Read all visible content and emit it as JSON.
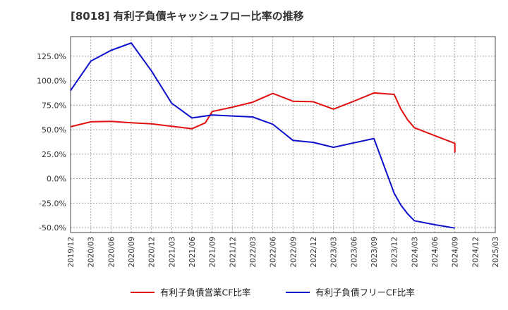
{
  "chart_data": {
    "type": "line",
    "title": "[8018]  有利子負債キャッシュフロー比率の推移",
    "xlabel": "",
    "ylabel": "",
    "ylim": [
      -55,
      145
    ],
    "yticks": [
      -50,
      -25,
      0,
      25,
      50,
      75,
      100,
      125
    ],
    "ytick_labels": [
      "-50.0%",
      "-25.0%",
      "0.0%",
      "25.0%",
      "50.0%",
      "75.0%",
      "100.0%",
      "125.0%"
    ],
    "xticks": [
      "2019/12",
      "2020/03",
      "2020/06",
      "2020/09",
      "2020/12",
      "2021/03",
      "2021/06",
      "2021/09",
      "2021/12",
      "2022/03",
      "2022/06",
      "2022/09",
      "2022/12",
      "2023/03",
      "2023/06",
      "2023/09",
      "2023/12",
      "2024/03",
      "2024/06",
      "2024/09",
      "2024/12",
      "2025/03"
    ],
    "grid": true,
    "legend_position": "bottom",
    "series": [
      {
        "name": "有利子負債営業CF比率",
        "color": "#e01010",
        "points": [
          [
            "2019/12",
            53
          ],
          [
            "2020/03",
            58
          ],
          [
            "2020/06",
            58.5
          ],
          [
            "2020/09",
            57
          ],
          [
            "2020/12",
            56
          ],
          [
            "2021/03",
            53.5
          ],
          [
            "2021/06",
            51
          ],
          [
            "2021/08",
            57
          ],
          [
            "2021/09",
            68.5
          ],
          [
            "2021/12",
            73
          ],
          [
            "2022/03",
            78
          ],
          [
            "2022/06",
            87
          ],
          [
            "2022/09",
            79
          ],
          [
            "2022/12",
            78.5
          ],
          [
            "2023/03",
            71
          ],
          [
            "2023/06",
            79
          ],
          [
            "2023/09",
            87.5
          ],
          [
            "2023/12",
            86
          ],
          [
            "2024/01",
            71
          ],
          [
            "2024/02",
            60
          ],
          [
            "2024/03",
            52
          ],
          [
            "2024/06",
            44
          ],
          [
            "2024/09",
            36
          ],
          [
            "2024/09",
            26.5
          ]
        ]
      },
      {
        "name": "有利子負債フリーCF比率",
        "color": "#1010cc",
        "points": [
          [
            "2019/12",
            90
          ],
          [
            "2020/03",
            120
          ],
          [
            "2020/06",
            131
          ],
          [
            "2020/09",
            138.5
          ],
          [
            "2020/12",
            110
          ],
          [
            "2021/03",
            77
          ],
          [
            "2021/06",
            62
          ],
          [
            "2021/09",
            65
          ],
          [
            "2021/12",
            64
          ],
          [
            "2022/03",
            63
          ],
          [
            "2022/06",
            55.5
          ],
          [
            "2022/09",
            39
          ],
          [
            "2022/12",
            37
          ],
          [
            "2023/03",
            32
          ],
          [
            "2023/06",
            36.5
          ],
          [
            "2023/09",
            41
          ],
          [
            "2023/12",
            -15
          ],
          [
            "2024/01",
            -27
          ],
          [
            "2024/02",
            -36
          ],
          [
            "2024/03",
            -43
          ],
          [
            "2024/06",
            -47
          ],
          [
            "2024/09",
            -50.5
          ]
        ]
      }
    ]
  }
}
